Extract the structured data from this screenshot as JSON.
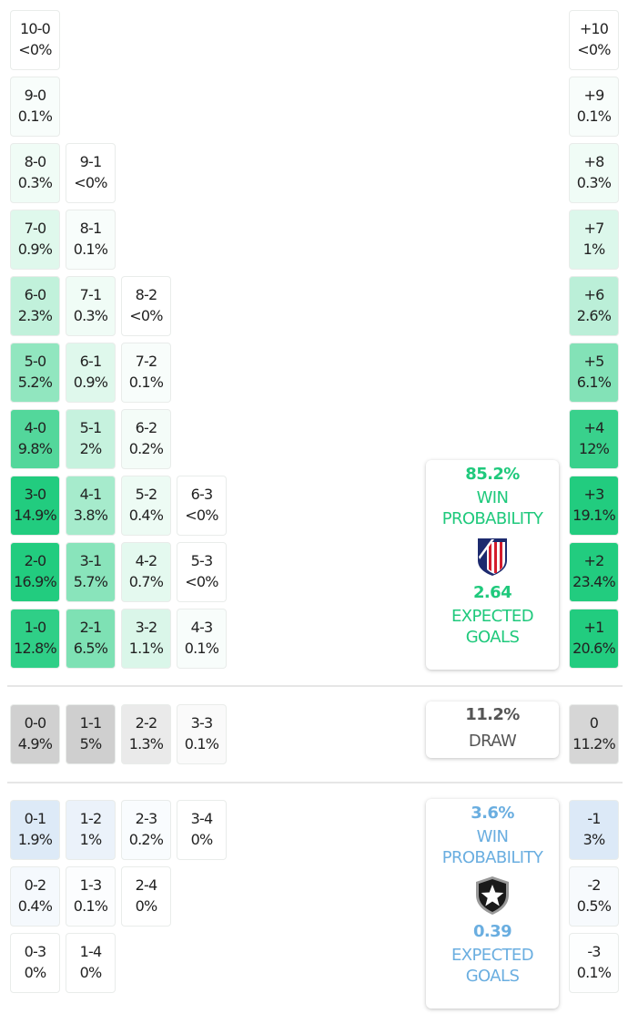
{
  "colors": {
    "home": "#22cc7f",
    "home_text": "#1fc97c",
    "draw": "#d4d4d4",
    "draw_text": "#555555",
    "away": "#e6f0fa",
    "away_text": "#6aaee0"
  },
  "home_wins": [
    {
      "score": "10-0",
      "prob": "<0%"
    },
    {
      "score": "9-0",
      "prob": "0.1%"
    },
    {
      "score": "8-0",
      "prob": "0.3%"
    },
    {
      "score": "7-0",
      "prob": "0.9%"
    },
    {
      "score": "6-0",
      "prob": "2.3%"
    },
    {
      "score": "5-0",
      "prob": "5.2%"
    },
    {
      "score": "4-0",
      "prob": "9.8%"
    },
    {
      "score": "3-0",
      "prob": "14.9%"
    },
    {
      "score": "2-0",
      "prob": "16.9%"
    },
    {
      "score": "1-0",
      "prob": "12.8%"
    },
    {
      "score": "9-1",
      "prob": "<0%"
    },
    {
      "score": "8-1",
      "prob": "0.1%"
    },
    {
      "score": "7-1",
      "prob": "0.3%"
    },
    {
      "score": "6-1",
      "prob": "0.9%"
    },
    {
      "score": "5-1",
      "prob": "2%"
    },
    {
      "score": "4-1",
      "prob": "3.8%"
    },
    {
      "score": "3-1",
      "prob": "5.7%"
    },
    {
      "score": "2-1",
      "prob": "6.5%"
    },
    {
      "score": "8-2",
      "prob": "<0%"
    },
    {
      "score": "7-2",
      "prob": "0.1%"
    },
    {
      "score": "6-2",
      "prob": "0.2%"
    },
    {
      "score": "5-2",
      "prob": "0.4%"
    },
    {
      "score": "4-2",
      "prob": "0.7%"
    },
    {
      "score": "3-2",
      "prob": "1.1%"
    },
    {
      "score": "6-3",
      "prob": "<0%"
    },
    {
      "score": "5-3",
      "prob": "<0%"
    },
    {
      "score": "4-3",
      "prob": "0.1%"
    }
  ],
  "draws": [
    {
      "score": "0-0",
      "prob": "4.9%"
    },
    {
      "score": "1-1",
      "prob": "5%"
    },
    {
      "score": "2-2",
      "prob": "1.3%"
    },
    {
      "score": "3-3",
      "prob": "0.1%"
    }
  ],
  "away_wins": [
    {
      "score": "0-1",
      "prob": "1.9%"
    },
    {
      "score": "0-2",
      "prob": "0.4%"
    },
    {
      "score": "0-3",
      "prob": "0%"
    },
    {
      "score": "1-2",
      "prob": "1%"
    },
    {
      "score": "1-3",
      "prob": "0.1%"
    },
    {
      "score": "1-4",
      "prob": "0%"
    },
    {
      "score": "2-3",
      "prob": "0.2%"
    },
    {
      "score": "2-4",
      "prob": "0%"
    },
    {
      "score": "3-4",
      "prob": "0%"
    }
  ],
  "goal_diff": [
    {
      "score": "+10",
      "prob": "<0%"
    },
    {
      "score": "+9",
      "prob": "0.1%"
    },
    {
      "score": "+8",
      "prob": "0.3%"
    },
    {
      "score": "+7",
      "prob": "1%"
    },
    {
      "score": "+6",
      "prob": "2.6%"
    },
    {
      "score": "+5",
      "prob": "6.1%"
    },
    {
      "score": "+4",
      "prob": "12%"
    },
    {
      "score": "+3",
      "prob": "19.1%"
    },
    {
      "score": "+2",
      "prob": "23.4%"
    },
    {
      "score": "+1",
      "prob": "20.6%"
    },
    {
      "score": "0",
      "prob": "11.2%"
    },
    {
      "score": "-1",
      "prob": "3%"
    },
    {
      "score": "-2",
      "prob": "0.5%"
    },
    {
      "score": "-3",
      "prob": "0.1%"
    }
  ],
  "home_panel": {
    "win_prob": "85.2%",
    "win_label": "WIN PROBABILITY",
    "crest": "atletico-madrid-crest",
    "xg": "2.64",
    "xg_label": "EXPECTED GOALS"
  },
  "draw_panel": {
    "prob": "11.2%",
    "label": "DRAW"
  },
  "away_panel": {
    "win_prob": "3.6%",
    "win_label": "WIN PROBABILITY",
    "crest": "botafogo-crest",
    "xg": "0.39",
    "xg_label": "EXPECTED GOALS"
  }
}
